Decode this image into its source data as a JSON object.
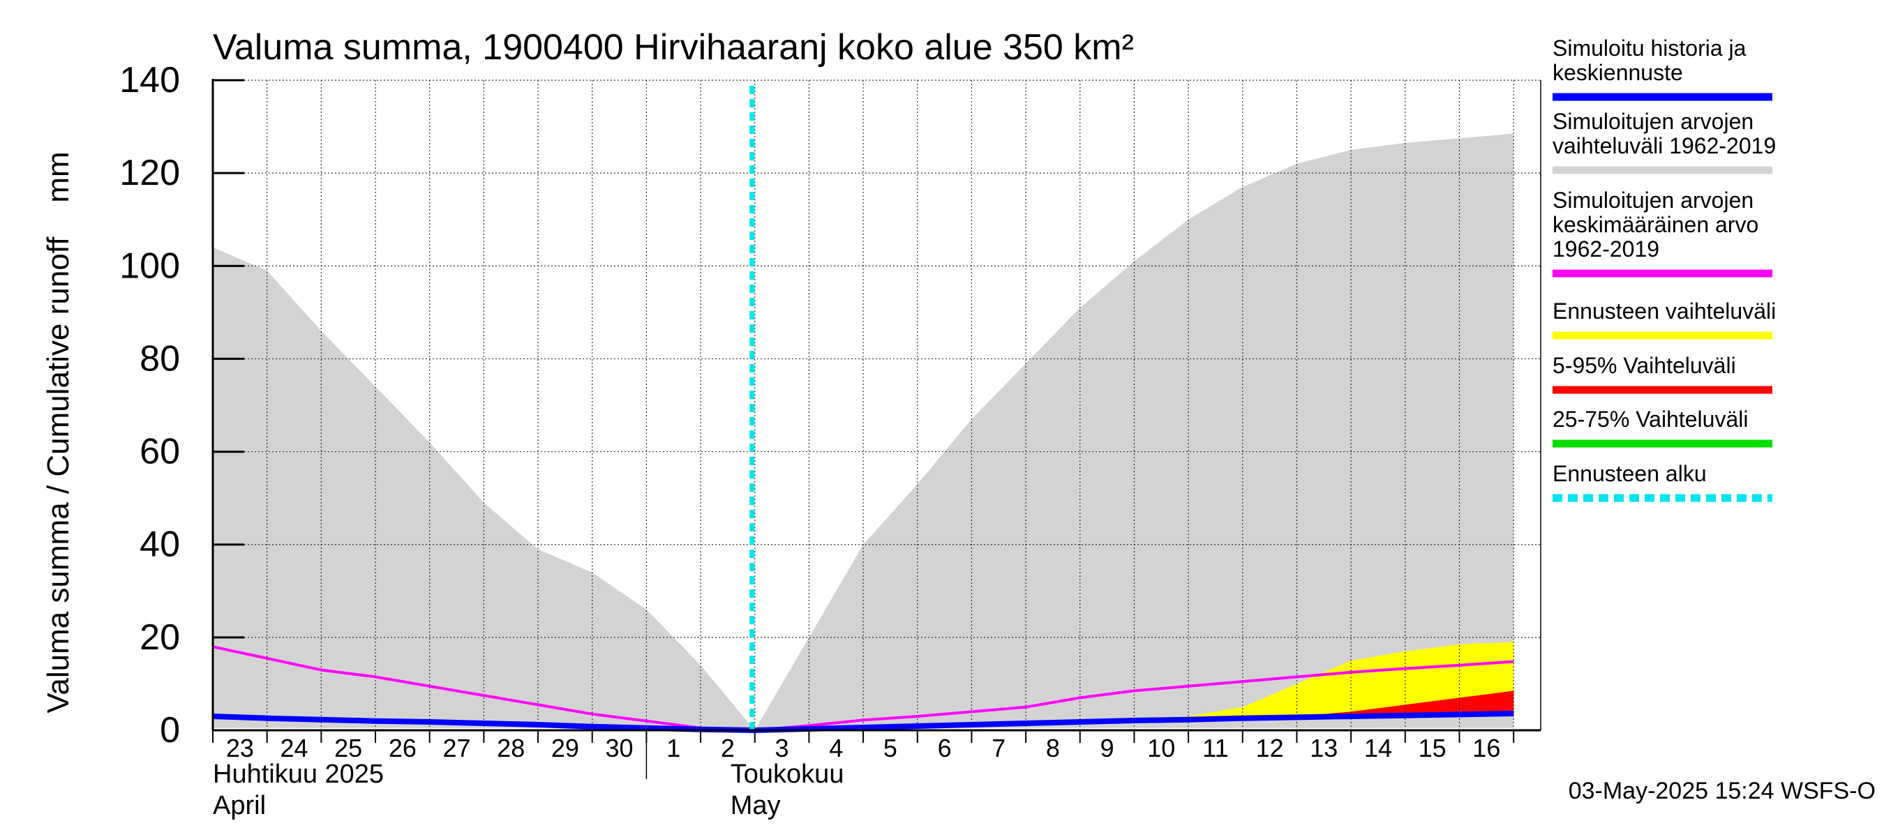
{
  "chart_data": {
    "type": "area",
    "title": "Valuma summa, 1900400 Hirvihaaranj koko alue 350 km²",
    "ylabel": "Valuma summa / Cumulative runoff    mm",
    "ylim": [
      0,
      140
    ],
    "yticks": [
      0,
      20,
      40,
      60,
      80,
      100,
      120,
      140
    ],
    "grid": true,
    "legend_position": "right",
    "x_start_date": "2025-04-23",
    "x_days": 25,
    "day_labels": [
      {
        "x": 0,
        "label": "23"
      },
      {
        "x": 1,
        "label": "24"
      },
      {
        "x": 2,
        "label": "25"
      },
      {
        "x": 3,
        "label": "26"
      },
      {
        "x": 4,
        "label": "27"
      },
      {
        "x": 5,
        "label": "28"
      },
      {
        "x": 6,
        "label": "29"
      },
      {
        "x": 7,
        "label": "30"
      },
      {
        "x": 8,
        "label": "1"
      },
      {
        "x": 9,
        "label": "2"
      },
      {
        "x": 10,
        "label": "3"
      },
      {
        "x": 11,
        "label": "4"
      },
      {
        "x": 12,
        "label": "5"
      },
      {
        "x": 13,
        "label": "6"
      },
      {
        "x": 14,
        "label": "7"
      },
      {
        "x": 15,
        "label": "8"
      },
      {
        "x": 16,
        "label": "9"
      },
      {
        "x": 17,
        "label": "10"
      },
      {
        "x": 18,
        "label": "11"
      },
      {
        "x": 19,
        "label": "12"
      },
      {
        "x": 20,
        "label": "13"
      },
      {
        "x": 21,
        "label": "14"
      },
      {
        "x": 22,
        "label": "15"
      },
      {
        "x": 23,
        "label": "16"
      }
    ],
    "month_labels": [
      {
        "x": 0,
        "line1": "Huhtikuu  2025",
        "line2": "April"
      },
      {
        "x": 9,
        "line1": "Toukokuu",
        "line2": "May"
      }
    ],
    "month_boundary_x": 8,
    "forecast_start_x": 10,
    "series": [
      {
        "name": "Simuloitujen arvojen vaihteluväli 1962-2019",
        "kind": "band",
        "color": "#d3d3d3",
        "x": [
          0,
          1,
          2,
          3,
          4,
          5,
          6,
          7,
          8,
          9,
          10,
          11,
          12,
          13,
          14,
          15,
          16,
          17,
          18,
          19,
          20,
          21,
          22,
          23,
          24
        ],
        "upper": [
          104,
          99,
          86,
          74,
          62,
          49,
          39,
          34,
          26,
          14,
          0,
          20,
          40,
          53,
          67,
          79,
          91,
          101,
          110,
          117,
          122,
          125,
          126.5,
          127.5,
          128.5
        ],
        "lower": [
          0.5,
          0.5,
          0.5,
          0.5,
          0.5,
          0.5,
          0.5,
          0.5,
          0.5,
          0.5,
          0,
          0.5,
          0.5,
          0.5,
          0.5,
          0.5,
          0.5,
          0.5,
          0.5,
          0.5,
          0.5,
          0.5,
          0.5,
          0.5,
          0.5
        ]
      },
      {
        "name": "Ennusteen vaihteluväli",
        "kind": "band",
        "color": "#ffff00",
        "x": [
          17,
          18,
          19,
          20,
          21,
          22,
          23,
          24
        ],
        "upper": [
          2.2,
          3,
          5,
          10,
          15,
          17,
          18.5,
          19
        ],
        "lower": [
          2,
          2.1,
          2.3,
          2.5,
          2.7,
          2.9,
          3.1,
          3.2
        ]
      },
      {
        "name": "5-95% Vaihteluväli",
        "kind": "band",
        "color": "#ff0000",
        "x": [
          17,
          18,
          19,
          20,
          21,
          22,
          23,
          24
        ],
        "upper": [
          2.1,
          2.3,
          2.6,
          3,
          4,
          5.5,
          7,
          8.5
        ],
        "lower": [
          2,
          2.1,
          2.3,
          2.5,
          2.7,
          2.9,
          3.1,
          3.2
        ]
      },
      {
        "name": "25-75% Vaihteluväli",
        "kind": "band",
        "color": "#00dd00",
        "x": [
          17,
          18,
          19,
          20,
          21,
          22,
          23,
          24
        ],
        "upper": [
          2.05,
          2.2,
          2.4,
          2.7,
          3,
          3.3,
          3.6,
          3.8
        ],
        "lower": [
          2,
          2.1,
          2.3,
          2.5,
          2.7,
          2.9,
          3.1,
          3.2
        ]
      },
      {
        "name": "Simuloitujen arvojen keskimääräinen arvo 1962-2019",
        "kind": "line",
        "color": "#ff00ff",
        "width": 4,
        "x": [
          0,
          1,
          2,
          3,
          4,
          5,
          6,
          7,
          8,
          9,
          10,
          11,
          12,
          13,
          14,
          15,
          16,
          17,
          18,
          19,
          20,
          21,
          22,
          23,
          24
        ],
        "values": [
          18,
          15.5,
          13,
          11.5,
          9.5,
          7.5,
          5.5,
          3.5,
          2,
          0.5,
          0,
          1,
          2.2,
          3,
          4,
          5,
          7,
          8.5,
          9.5,
          10.5,
          11.5,
          12.5,
          13.3,
          14,
          14.8
        ]
      },
      {
        "name": "Simuloitu historia ja keskiennuste",
        "kind": "line",
        "color": "#0000ff",
        "width": 8,
        "x": [
          0,
          1,
          2,
          3,
          4,
          5,
          6,
          7,
          8,
          9,
          10,
          11,
          12,
          13,
          14,
          15,
          16,
          17,
          18,
          19,
          20,
          21,
          22,
          23,
          24
        ],
        "values": [
          3,
          2.6,
          2.3,
          2,
          1.8,
          1.5,
          1.2,
          0.8,
          0.5,
          0.2,
          0,
          0.3,
          0.6,
          0.9,
          1.2,
          1.5,
          1.8,
          2.1,
          2.3,
          2.6,
          2.8,
          3,
          3.2,
          3.4,
          3.6
        ]
      }
    ],
    "legend": [
      {
        "label": "Simuloitu historia ja\nkeskiennuste",
        "color": "#0000ff",
        "style": "solid"
      },
      {
        "label": "Simuloitujen arvojen\nvaihteluväli 1962-2019",
        "color": "#d3d3d3",
        "style": "solid"
      },
      {
        "label": "Simuloitujen arvojen\nkeskimääräinen arvo\n   1962-2019",
        "color": "#ff00ff",
        "style": "solid"
      },
      {
        "label": "Ennusteen vaihteluväli",
        "color": "#ffff00",
        "style": "solid"
      },
      {
        "label": "5-95% Vaihteluväli",
        "color": "#ff0000",
        "style": "solid"
      },
      {
        "label": "25-75% Vaihteluväli",
        "color": "#00dd00",
        "style": "solid"
      },
      {
        "label": "Ennusteen alku",
        "color": "#00e5ee",
        "style": "dashed"
      }
    ],
    "footer": "03-May-2025 15:24 WSFS-O"
  }
}
